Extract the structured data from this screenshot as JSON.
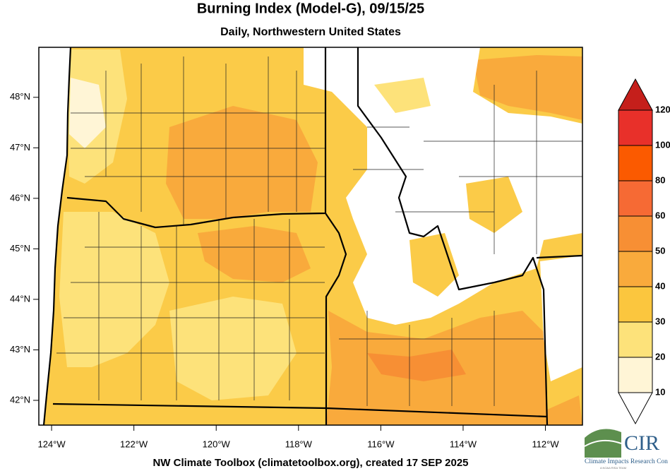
{
  "map": {
    "title": "Burning Index (Model-G), 09/15/25",
    "subtitle": "Daily, Northwestern United States",
    "footer": "NW Climate Toolbox (climatetoolbox.org), created 17 SEP 2025",
    "xlim": [
      -124.31,
      -111.1
    ],
    "ylim": [
      41.51,
      48.99
    ],
    "xticks": [
      {
        "value": -124,
        "label": "124°W"
      },
      {
        "value": -122,
        "label": "122°W"
      },
      {
        "value": -120,
        "label": "120°W"
      },
      {
        "value": -118,
        "label": "118°W"
      },
      {
        "value": -116,
        "label": "116°W"
      },
      {
        "value": -114,
        "label": "114°W"
      },
      {
        "value": -112,
        "label": "112°W"
      }
    ],
    "yticks": [
      {
        "value": 48,
        "label": "48°N"
      },
      {
        "value": 47,
        "label": "47°N"
      },
      {
        "value": 46,
        "label": "46°N"
      },
      {
        "value": 45,
        "label": "45°N"
      },
      {
        "value": 44,
        "label": "44°N"
      },
      {
        "value": 43,
        "label": "43°N"
      },
      {
        "value": 42,
        "label": "42°N"
      }
    ],
    "colorbar": {
      "levels": [
        10,
        20,
        30,
        40,
        50,
        60,
        80,
        100,
        120
      ],
      "colors": [
        "#fff5d6",
        "#fde27a",
        "#fbc63e",
        "#f9aa3c",
        "#f78f34",
        "#f66a34",
        "#fb5a00",
        "#e8302a"
      ],
      "under_color": "#ffffff",
      "over_color": "#c51f1b"
    },
    "logo": {
      "mark": "CIR",
      "name": "Climate Impacts Research Con",
      "tagline": "A NOAA RISA TEAM"
    }
  }
}
